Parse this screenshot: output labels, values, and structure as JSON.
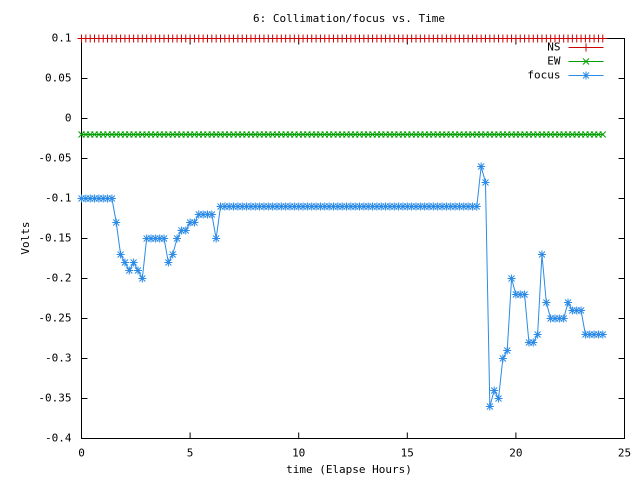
{
  "chart_data": {
    "type": "line",
    "title": "6: Collimation/focus vs. Time",
    "x_label": "time (Elapse Hours)",
    "y_label": "Volts",
    "x": [
      0,
      0.2,
      0.4,
      0.6,
      0.8,
      1,
      1.2,
      1.4,
      1.6,
      1.8,
      2,
      2.2,
      2.4,
      2.6,
      2.8,
      3,
      3.2,
      3.4,
      3.6,
      3.8,
      4,
      4.2,
      4.4,
      4.6,
      4.8,
      5,
      5.2,
      5.4,
      5.6,
      5.8,
      6,
      6.2,
      6.4,
      6.6,
      6.8,
      7,
      7.2,
      7.4,
      7.6,
      7.8,
      8,
      8.2,
      8.4,
      8.6,
      8.8,
      9,
      9.2,
      9.4,
      9.6,
      9.8,
      10,
      10.2,
      10.4,
      10.6,
      10.8,
      11,
      11.2,
      11.4,
      11.6,
      11.8,
      12,
      12.2,
      12.4,
      12.6,
      12.8,
      13,
      13.2,
      13.4,
      13.6,
      13.8,
      14,
      14.2,
      14.4,
      14.6,
      14.8,
      15,
      15.2,
      15.4,
      15.6,
      15.8,
      16,
      16.2,
      16.4,
      16.6,
      16.8,
      17,
      17.2,
      17.4,
      17.6,
      17.8,
      18,
      18.2,
      18.4,
      18.6,
      18.8,
      19,
      19.2,
      19.4,
      19.6,
      19.8,
      20,
      20.2,
      20.4,
      20.6,
      20.8,
      21,
      21.2,
      21.4,
      21.6,
      21.8,
      22,
      22.2,
      22.4,
      22.6,
      22.8,
      23,
      23.2,
      23.4,
      23.6,
      23.8,
      24
    ],
    "series": [
      {
        "name": "NS",
        "color": "#cc0000",
        "marker": "plus",
        "values": [
          0.1,
          0.1,
          0.1,
          0.1,
          0.1,
          0.1,
          0.1,
          0.1,
          0.1,
          0.1,
          0.1,
          0.1,
          0.1,
          0.1,
          0.1,
          0.1,
          0.1,
          0.1,
          0.1,
          0.1,
          0.1,
          0.1,
          0.1,
          0.1,
          0.1,
          0.1,
          0.1,
          0.1,
          0.1,
          0.1,
          0.1,
          0.1,
          0.1,
          0.1,
          0.1,
          0.1,
          0.1,
          0.1,
          0.1,
          0.1,
          0.1,
          0.1,
          0.1,
          0.1,
          0.1,
          0.1,
          0.1,
          0.1,
          0.1,
          0.1,
          0.1,
          0.1,
          0.1,
          0.1,
          0.1,
          0.1,
          0.1,
          0.1,
          0.1,
          0.1,
          0.1,
          0.1,
          0.1,
          0.1,
          0.1,
          0.1,
          0.1,
          0.1,
          0.1,
          0.1,
          0.1,
          0.1,
          0.1,
          0.1,
          0.1,
          0.1,
          0.1,
          0.1,
          0.1,
          0.1,
          0.1,
          0.1,
          0.1,
          0.1,
          0.1,
          0.1,
          0.1,
          0.1,
          0.1,
          0.1,
          0.1,
          0.1,
          0.1,
          0.1,
          0.1,
          0.1,
          0.1,
          0.1,
          0.1,
          0.1,
          0.1,
          0.1,
          0.1,
          0.1,
          0.1,
          0.1,
          0.1,
          0.1,
          0.1,
          0.1,
          0.1,
          0.1,
          0.1,
          0.1,
          0.1,
          0.1,
          0.1,
          0.1,
          0.1,
          0.1,
          0.1
        ]
      },
      {
        "name": "EW",
        "color": "#00a000",
        "marker": "cross",
        "values": [
          -0.02,
          -0.02,
          -0.02,
          -0.02,
          -0.02,
          -0.02,
          -0.02,
          -0.02,
          -0.02,
          -0.02,
          -0.02,
          -0.02,
          -0.02,
          -0.02,
          -0.02,
          -0.02,
          -0.02,
          -0.02,
          -0.02,
          -0.02,
          -0.02,
          -0.02,
          -0.02,
          -0.02,
          -0.02,
          -0.02,
          -0.02,
          -0.02,
          -0.02,
          -0.02,
          -0.02,
          -0.02,
          -0.02,
          -0.02,
          -0.02,
          -0.02,
          -0.02,
          -0.02,
          -0.02,
          -0.02,
          -0.02,
          -0.02,
          -0.02,
          -0.02,
          -0.02,
          -0.02,
          -0.02,
          -0.02,
          -0.02,
          -0.02,
          -0.02,
          -0.02,
          -0.02,
          -0.02,
          -0.02,
          -0.02,
          -0.02,
          -0.02,
          -0.02,
          -0.02,
          -0.02,
          -0.02,
          -0.02,
          -0.02,
          -0.02,
          -0.02,
          -0.02,
          -0.02,
          -0.02,
          -0.02,
          -0.02,
          -0.02,
          -0.02,
          -0.02,
          -0.02,
          -0.02,
          -0.02,
          -0.02,
          -0.02,
          -0.02,
          -0.02,
          -0.02,
          -0.02,
          -0.02,
          -0.02,
          -0.02,
          -0.02,
          -0.02,
          -0.02,
          -0.02,
          -0.02,
          -0.02,
          -0.02,
          -0.02,
          -0.02,
          -0.02,
          -0.02,
          -0.02,
          -0.02,
          -0.02,
          -0.02,
          -0.02,
          -0.02,
          -0.02,
          -0.02,
          -0.02,
          -0.02,
          -0.02,
          -0.02,
          -0.02,
          -0.02,
          -0.02,
          -0.02,
          -0.02,
          -0.02,
          -0.02,
          -0.02,
          -0.02,
          -0.02,
          -0.02,
          -0.02
        ]
      },
      {
        "name": "focus",
        "color": "#2b8be6",
        "marker": "star",
        "values": [
          -0.1,
          -0.1,
          -0.1,
          -0.1,
          -0.1,
          -0.1,
          -0.1,
          -0.1,
          -0.13,
          -0.17,
          -0.18,
          -0.19,
          -0.18,
          -0.19,
          -0.2,
          -0.15,
          -0.15,
          -0.15,
          -0.15,
          -0.15,
          -0.18,
          -0.17,
          -0.15,
          -0.14,
          -0.14,
          -0.13,
          -0.13,
          -0.12,
          -0.12,
          -0.12,
          -0.12,
          -0.15,
          -0.11,
          -0.11,
          -0.11,
          -0.11,
          -0.11,
          -0.11,
          -0.11,
          -0.11,
          -0.11,
          -0.11,
          -0.11,
          -0.11,
          -0.11,
          -0.11,
          -0.11,
          -0.11,
          -0.11,
          -0.11,
          -0.11,
          -0.11,
          -0.11,
          -0.11,
          -0.11,
          -0.11,
          -0.11,
          -0.11,
          -0.11,
          -0.11,
          -0.11,
          -0.11,
          -0.11,
          -0.11,
          -0.11,
          -0.11,
          -0.11,
          -0.11,
          -0.11,
          -0.11,
          -0.11,
          -0.11,
          -0.11,
          -0.11,
          -0.11,
          -0.11,
          -0.11,
          -0.11,
          -0.11,
          -0.11,
          -0.11,
          -0.11,
          -0.11,
          -0.11,
          -0.11,
          -0.11,
          -0.11,
          -0.11,
          -0.11,
          -0.11,
          -0.11,
          -0.11,
          -0.06,
          -0.08,
          -0.36,
          -0.34,
          -0.35,
          -0.3,
          -0.29,
          -0.2,
          -0.22,
          -0.22,
          -0.22,
          -0.28,
          -0.28,
          -0.27,
          -0.17,
          -0.23,
          -0.25,
          -0.25,
          -0.25,
          -0.25,
          -0.23,
          -0.24,
          -0.24,
          -0.24,
          -0.27,
          -0.27,
          -0.27,
          -0.27,
          -0.27
        ]
      }
    ],
    "xlim": [
      0,
      25
    ],
    "xticks": [
      0,
      5,
      10,
      15,
      20,
      25
    ],
    "ylim": [
      -0.4,
      0.1
    ],
    "yticks": [
      0.1,
      0.05,
      0,
      -0.05,
      -0.1,
      -0.15,
      -0.2,
      -0.25,
      -0.3,
      -0.35,
      -0.4
    ],
    "legend": "top-right"
  }
}
